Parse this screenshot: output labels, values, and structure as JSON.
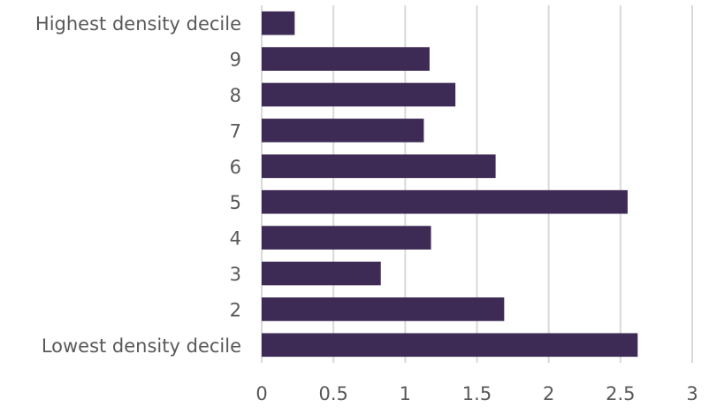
{
  "chart_data": {
    "type": "bar",
    "orientation": "horizontal",
    "categories": [
      "Highest density decile",
      "9",
      "8",
      "7",
      "6",
      "5",
      "4",
      "3",
      "2",
      "Lowest density decile"
    ],
    "values": [
      0.23,
      1.17,
      1.35,
      1.13,
      1.63,
      2.55,
      1.18,
      0.83,
      1.69,
      2.62
    ],
    "xlim": [
      0,
      3
    ],
    "xticks": [
      "0",
      "0.5",
      "1",
      "1.5",
      "2",
      "2.5",
      "3"
    ],
    "grid": true,
    "bar_color": "#3e2b55",
    "grid_color": "#d9d9d9",
    "text_color": "#595959"
  }
}
